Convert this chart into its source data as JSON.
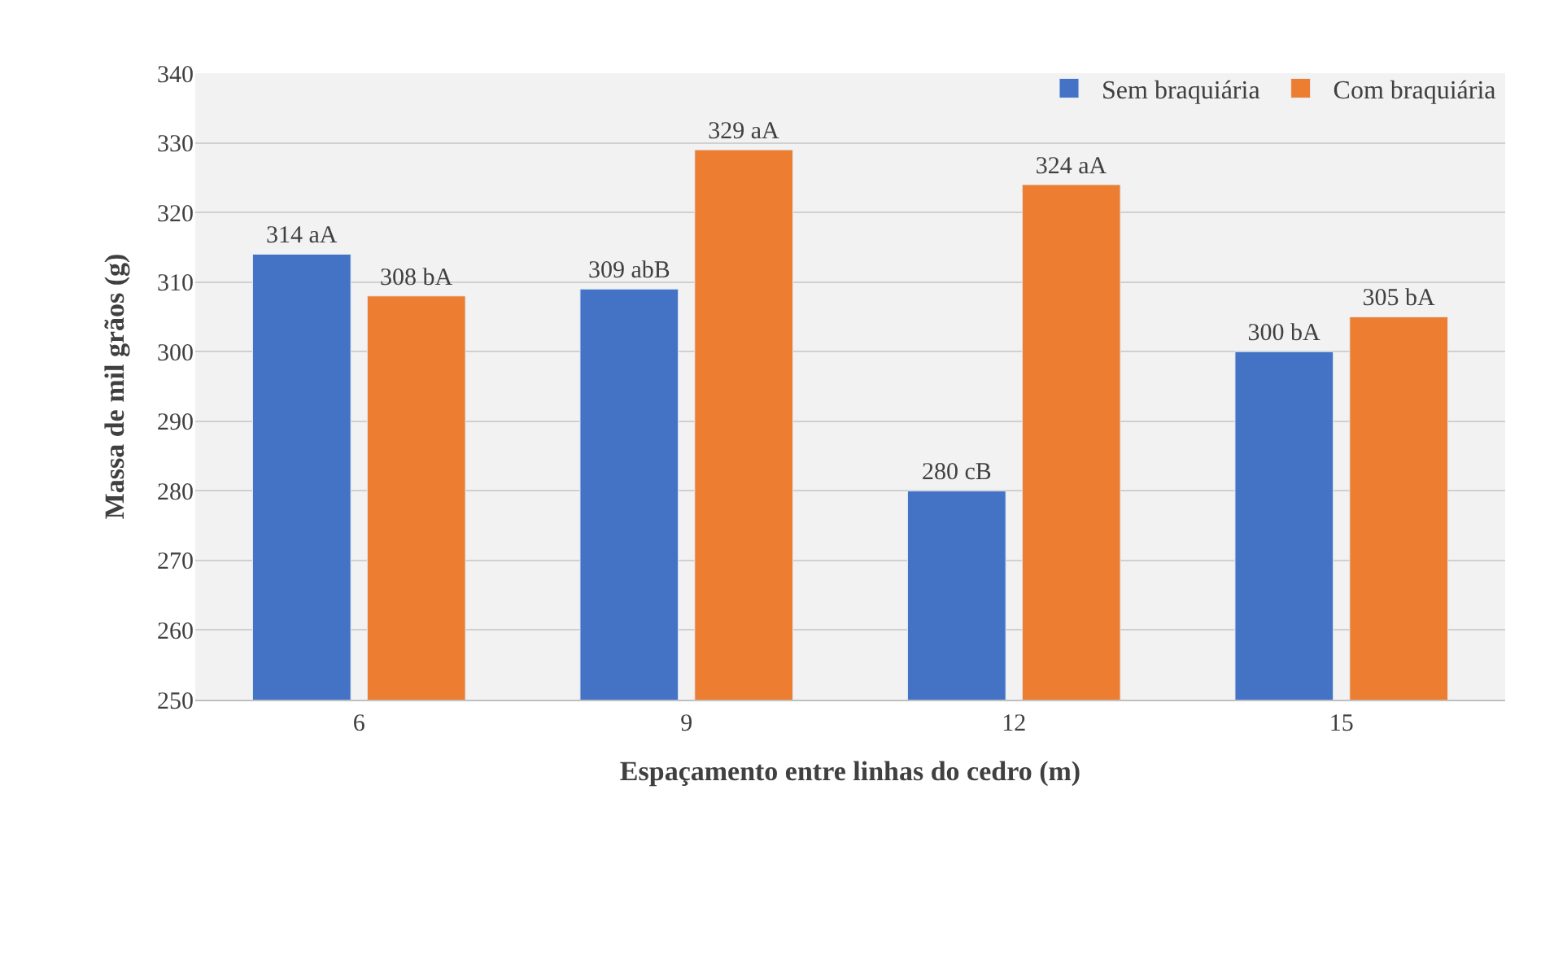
{
  "chart_data": {
    "type": "bar",
    "xlabel": "Espaçamento entre linhas do cedro (m)",
    "ylabel": "Massa de mil grãos (g)",
    "categories": [
      "6",
      "9",
      "12",
      "15"
    ],
    "series": [
      {
        "name": "Sem braquiária",
        "color": "#4472c4",
        "values": [
          314,
          309,
          280,
          300
        ],
        "value_labels": [
          "314 aA",
          "309 abB",
          "280 cB",
          "300 bA"
        ]
      },
      {
        "name": "Com braquiária",
        "color": "#ed7d31",
        "values": [
          308,
          329,
          324,
          305
        ],
        "value_labels": [
          "308 bA",
          "329 aA",
          "324 aA",
          "305 bA"
        ]
      }
    ],
    "ylim": [
      250,
      340
    ],
    "yticks": [
      250,
      260,
      270,
      280,
      290,
      300,
      310,
      320,
      330,
      340
    ],
    "grid": "y",
    "legend": "top right"
  }
}
